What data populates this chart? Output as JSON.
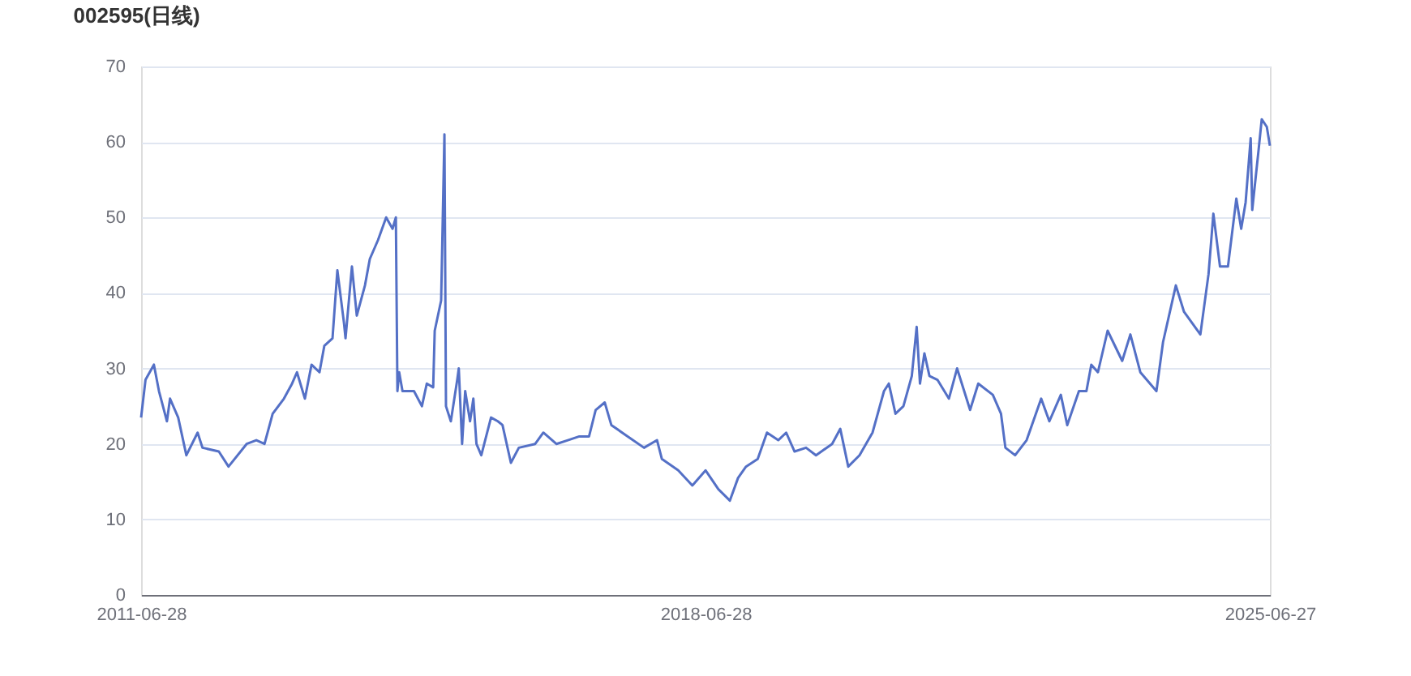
{
  "chart_data": {
    "type": "line",
    "title": "002595(日线)",
    "xlim": [
      "2011-06-28",
      "2025-06-27"
    ],
    "xticks": [
      "2011-06-28",
      "2018-06-28",
      "2025-06-27"
    ],
    "ylim": [
      0,
      70
    ],
    "yticks": [
      0,
      10,
      20,
      30,
      40,
      50,
      60,
      70
    ],
    "grid": "y",
    "legend": false,
    "marker": "none",
    "line_style": "solid",
    "series": [
      {
        "color": "#5470c6",
        "x": [
          "2011-06-28",
          "2011-07-18",
          "2011-08-25",
          "2011-09-17",
          "2011-10-23",
          "2011-11-06",
          "2011-12-13",
          "2012-01-19",
          "2012-03-10",
          "2012-04-01",
          "2012-06-14",
          "2012-07-28",
          "2012-10-18",
          "2012-12-01",
          "2013-01-07",
          "2013-02-13",
          "2013-04-05",
          "2013-05-12",
          "2013-06-03",
          "2013-07-09",
          "2013-08-08",
          "2013-09-13",
          "2013-10-05",
          "2013-11-11",
          "2013-12-03",
          "2014-01-02",
          "2014-01-09",
          "2014-02-07",
          "2014-03-01",
          "2014-04-07",
          "2014-04-29",
          "2014-06-05",
          "2014-07-12",
          "2014-08-10",
          "2014-08-25",
          "2014-09-01",
          "2014-09-09",
          "2014-09-24",
          "2014-11-15",
          "2014-12-21",
          "2015-01-12",
          "2015-02-10",
          "2015-02-17",
          "2015-03-18",
          "2015-04-02",
          "2015-04-09",
          "2015-05-01",
          "2015-05-30",
          "2015-06-06",
          "2015-06-21",
          "2015-07-05",
          "2015-07-27",
          "2015-08-11",
          "2015-08-25",
          "2015-09-16",
          "2015-10-30",
          "2015-11-30",
          "2015-12-21",
          "2016-01-28",
          "2016-03-04",
          "2016-05-17",
          "2016-06-23",
          "2016-08-21",
          "2016-10-12",
          "2016-12-03",
          "2017-01-16",
          "2017-02-15",
          "2017-03-28",
          "2017-04-27",
          "2017-07-10",
          "2017-09-22",
          "2017-11-20",
          "2017-12-12",
          "2018-02-24",
          "2018-04-29",
          "2018-06-28",
          "2018-08-25",
          "2018-10-16",
          "2018-11-22",
          "2018-12-28",
          "2019-02-19",
          "2019-04-02",
          "2019-05-23",
          "2019-06-28",
          "2019-08-05",
          "2019-09-26",
          "2019-11-10",
          "2020-01-22",
          "2020-02-28",
          "2020-04-04",
          "2020-05-25",
          "2020-07-23",
          "2020-09-13",
          "2020-10-05",
          "2020-11-04",
          "2020-12-10",
          "2021-01-17",
          "2021-02-08",
          "2021-02-23",
          "2021-03-15",
          "2021-04-07",
          "2021-05-13",
          "2021-07-04",
          "2021-08-10",
          "2021-10-08",
          "2021-11-14",
          "2022-01-19",
          "2022-02-25",
          "2022-03-17",
          "2022-04-30",
          "2022-06-21",
          "2022-08-26",
          "2022-10-02",
          "2022-11-23",
          "2022-12-22",
          "2023-02-13",
          "2023-03-19",
          "2023-04-10",
          "2023-05-10",
          "2023-06-23",
          "2023-08-28",
          "2023-10-04",
          "2023-11-18",
          "2024-01-30",
          "2024-02-29",
          "2024-04-27",
          "2024-06-03",
          "2024-08-16",
          "2024-09-22",
          "2024-10-14",
          "2024-11-13",
          "2024-12-19",
          "2025-01-26",
          "2025-02-17",
          "2025-03-09",
          "2025-04-01",
          "2025-04-08",
          "2025-05-07",
          "2025-05-21",
          "2025-06-13",
          "2025-06-27"
        ],
        "values": [
          23.5,
          28.5,
          30.5,
          27,
          23,
          26,
          23.5,
          18.5,
          21.5,
          19.5,
          19,
          17,
          20,
          20.5,
          20,
          24,
          26,
          28,
          29.5,
          26,
          30.5,
          29.5,
          33,
          34,
          43,
          36,
          34,
          43.5,
          37,
          41,
          44.5,
          47,
          50,
          48.5,
          50,
          27,
          29.5,
          27,
          27,
          25,
          28,
          27.5,
          35,
          39,
          61,
          25,
          23,
          28.5,
          30,
          20,
          27,
          23,
          26,
          20,
          18.5,
          23.5,
          23,
          22.5,
          17.5,
          19.5,
          20,
          21.5,
          20,
          20.5,
          21,
          21,
          24.5,
          25.5,
          22.5,
          21,
          19.5,
          20.5,
          18,
          16.5,
          14.5,
          16.5,
          14,
          12.5,
          15.5,
          17,
          18,
          21.5,
          20.5,
          21.5,
          19,
          19.5,
          18.5,
          20,
          22,
          17,
          18.5,
          21.5,
          27,
          28,
          24,
          25,
          29,
          35.5,
          28,
          32,
          29,
          28.5,
          26,
          30,
          24.5,
          28,
          26.5,
          24,
          19.5,
          18.5,
          20.5,
          26,
          23,
          26.5,
          22.5,
          27,
          27,
          30.5,
          29.5,
          35,
          31,
          34.5,
          29.5,
          27,
          33.5,
          41,
          37.5,
          34.5,
          42.5,
          50.5,
          43.5,
          43.5,
          52.5,
          48.5,
          52,
          60.5,
          51,
          59,
          63,
          62,
          59.5
        ]
      }
    ]
  }
}
